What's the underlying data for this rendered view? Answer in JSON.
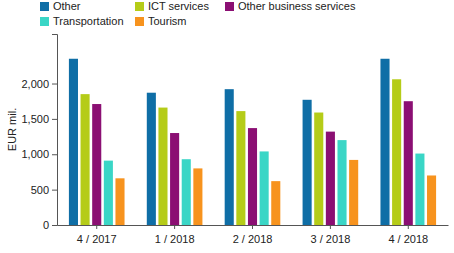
{
  "chart_data": {
    "type": "bar",
    "y_label": "EUR mil.",
    "categories": [
      "4 / 2017",
      "1 / 2018",
      "2 / 2018",
      "3 / 2018",
      "4 / 2018"
    ],
    "series": [
      {
        "name": "Other",
        "color": "#0f6ea6",
        "values": [
          2350,
          1870,
          1920,
          1770,
          2350
        ]
      },
      {
        "name": "ICT services",
        "color": "#b5cc18",
        "values": [
          1850,
          1660,
          1610,
          1590,
          2060
        ]
      },
      {
        "name": "Other business services",
        "color": "#8b0f73",
        "values": [
          1710,
          1300,
          1370,
          1320,
          1750
        ]
      },
      {
        "name": "Transportation",
        "color": "#3ad6c6",
        "values": [
          910,
          930,
          1040,
          1200,
          1010
        ]
      },
      {
        "name": "Tourism",
        "color": "#f7931e",
        "values": [
          660,
          800,
          620,
          920,
          700
        ]
      }
    ],
    "ylim": [
      0,
      2700
    ],
    "yticks": [
      0,
      500,
      {
        "value": 1000,
        "label": "1,000"
      },
      {
        "value": 1500,
        "label": "1,500"
      },
      {
        "value": 2000,
        "label": "2,000"
      }
    ],
    "grid": false
  }
}
